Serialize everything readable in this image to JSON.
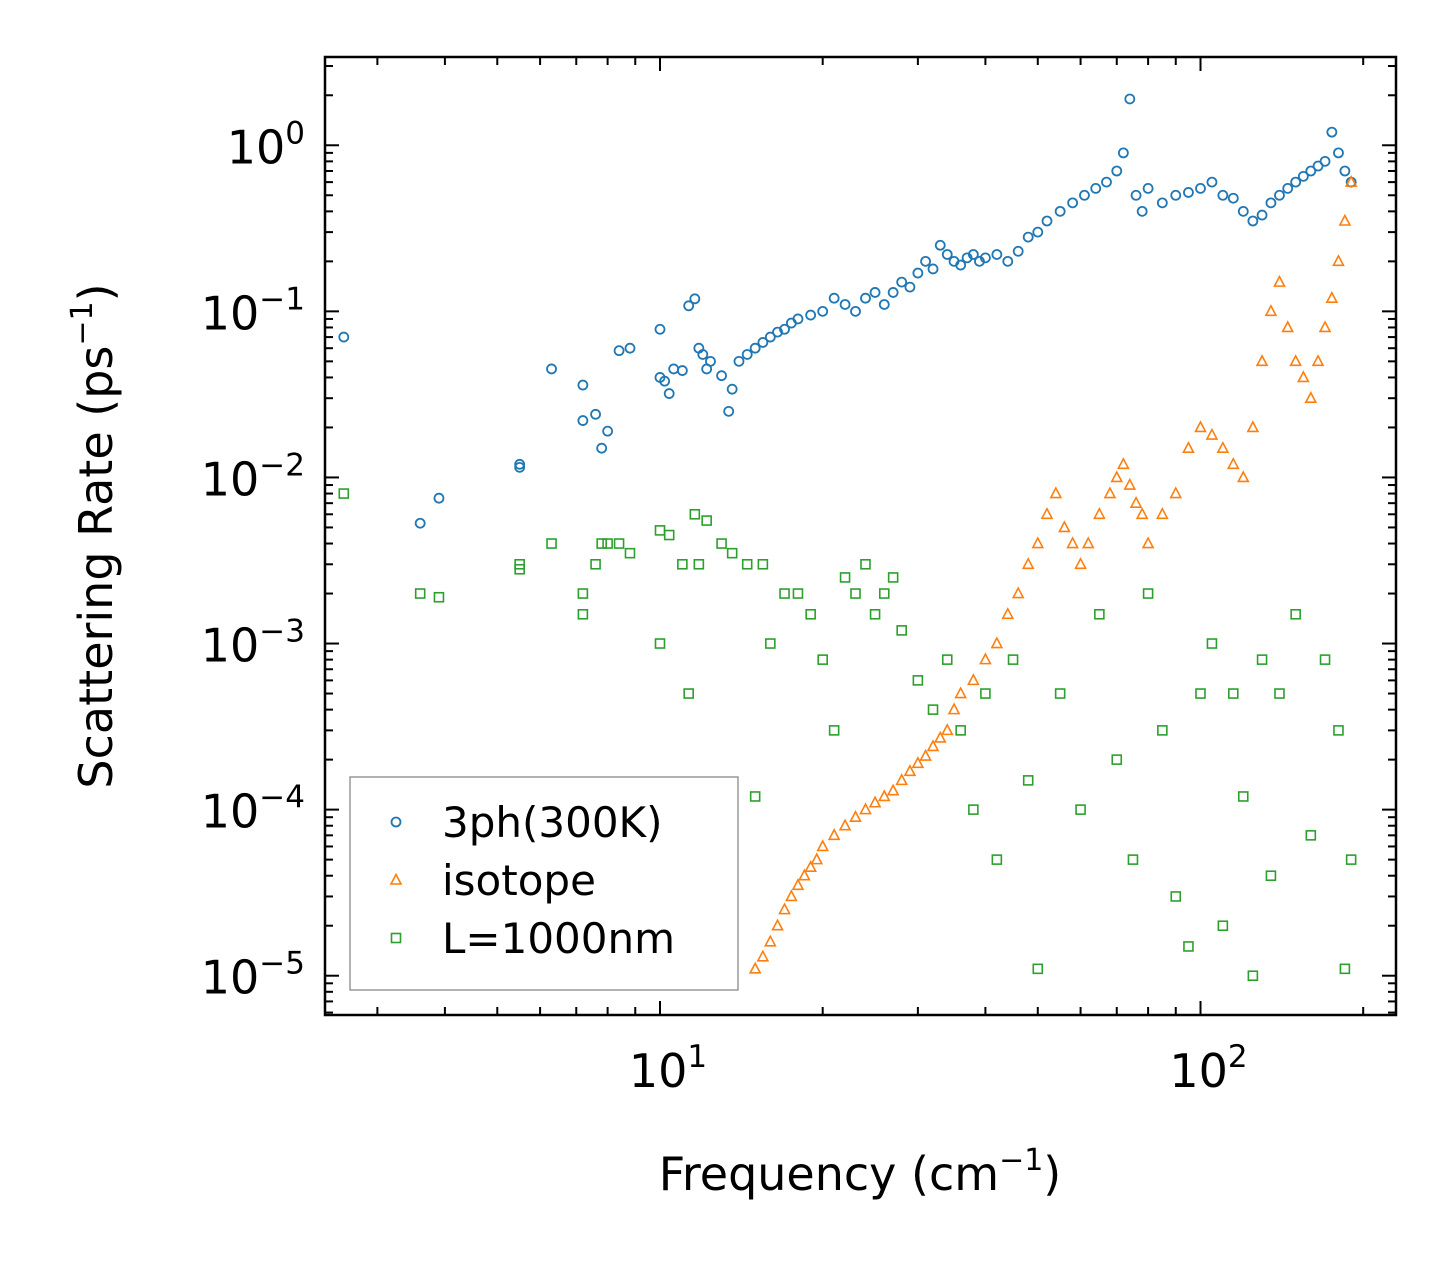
{
  "chart_data": {
    "type": "scatter",
    "xscale": "log",
    "yscale": "log",
    "xlabel_main": "Frequency (cm",
    "xlabel_sup": "−1",
    "xlabel_end": ")",
    "ylabel_main": "Scattering Rate (ps",
    "ylabel_sup": "−1",
    "ylabel_end": ")",
    "xlim": [
      2.4,
      230
    ],
    "ylim": [
      5.8e-06,
      3.4
    ],
    "x_ticks": [
      {
        "value": 10,
        "base": "10",
        "exp": "1"
      },
      {
        "value": 100,
        "base": "10",
        "exp": "2"
      }
    ],
    "y_ticks": [
      {
        "value": 1,
        "base": "10",
        "exp": "0"
      },
      {
        "value": 0.1,
        "base": "10",
        "exp": "−1"
      },
      {
        "value": 0.01,
        "base": "10",
        "exp": "−2"
      },
      {
        "value": 0.001,
        "base": "10",
        "exp": "−3"
      },
      {
        "value": 0.0001,
        "base": "10",
        "exp": "−4"
      },
      {
        "value": 1e-05,
        "base": "10",
        "exp": "−5"
      }
    ],
    "legend_position": "bottom-left",
    "series": [
      {
        "name": "3ph(300K)",
        "marker": "circle",
        "color": "#1f77b4",
        "x": [
          2.6,
          3.6,
          3.9,
          5.5,
          5.5,
          6.3,
          7.2,
          7.2,
          7.6,
          7.8,
          8.0,
          8.4,
          8.8,
          10.0,
          10.0,
          10.2,
          10.4,
          10.6,
          11.0,
          11.3,
          11.6,
          11.8,
          12.0,
          12.2,
          12.4,
          13.0,
          13.4,
          13.6,
          14.0,
          14.5,
          15.0,
          15.5,
          16.0,
          16.5,
          17.0,
          17.5,
          18.0,
          19.0,
          20.0,
          21.0,
          22.0,
          23.0,
          24.0,
          25.0,
          26.0,
          27.0,
          28.0,
          29.0,
          30.0,
          31.0,
          32.0,
          33.0,
          34.0,
          35.0,
          36.0,
          37.0,
          38.0,
          39.0,
          40.0,
          42.0,
          44.0,
          46.0,
          48.0,
          50.0,
          52.0,
          55.0,
          58.0,
          61.0,
          64.0,
          67.0,
          70.0,
          72.0,
          74.0,
          76.0,
          78.0,
          80.0,
          85.0,
          90.0,
          95.0,
          100.0,
          105.0,
          110.0,
          115.0,
          120.0,
          125.0,
          130.0,
          135.0,
          140.0,
          145.0,
          150.0,
          155.0,
          160.0,
          165.0,
          170.0,
          175.0,
          180.0,
          185.0,
          190.0
        ],
        "y": [
          0.07,
          0.0053,
          0.0075,
          0.0115,
          0.012,
          0.045,
          0.036,
          0.022,
          0.024,
          0.015,
          0.019,
          0.058,
          0.06,
          0.078,
          0.04,
          0.038,
          0.032,
          0.045,
          0.044,
          0.108,
          0.119,
          0.06,
          0.055,
          0.045,
          0.05,
          0.041,
          0.025,
          0.034,
          0.05,
          0.055,
          0.06,
          0.065,
          0.07,
          0.075,
          0.078,
          0.085,
          0.09,
          0.095,
          0.1,
          0.12,
          0.11,
          0.1,
          0.12,
          0.13,
          0.11,
          0.13,
          0.15,
          0.14,
          0.17,
          0.2,
          0.18,
          0.25,
          0.22,
          0.2,
          0.19,
          0.21,
          0.22,
          0.2,
          0.21,
          0.22,
          0.2,
          0.23,
          0.28,
          0.3,
          0.35,
          0.4,
          0.45,
          0.5,
          0.55,
          0.6,
          0.7,
          0.9,
          1.9,
          0.5,
          0.4,
          0.55,
          0.45,
          0.5,
          0.52,
          0.55,
          0.6,
          0.5,
          0.48,
          0.4,
          0.35,
          0.38,
          0.45,
          0.5,
          0.55,
          0.6,
          0.65,
          0.7,
          0.75,
          0.8,
          1.2,
          0.9,
          0.7,
          0.6
        ]
      },
      {
        "name": "isotope",
        "marker": "triangle",
        "color": "#ff7f0e",
        "x": [
          15.0,
          15.5,
          16.0,
          16.5,
          17.0,
          17.5,
          18.0,
          18.5,
          19.0,
          19.5,
          20.0,
          21.0,
          22.0,
          23.0,
          24.0,
          25.0,
          26.0,
          27.0,
          28.0,
          29.0,
          30.0,
          31.0,
          32.0,
          33.0,
          34.0,
          35.0,
          36.0,
          38.0,
          40.0,
          42.0,
          44.0,
          46.0,
          48.0,
          50.0,
          52.0,
          54.0,
          56.0,
          58.0,
          60.0,
          62.0,
          65.0,
          68.0,
          70.0,
          72.0,
          74.0,
          76.0,
          78.0,
          80.0,
          85.0,
          90.0,
          95.0,
          100.0,
          105.0,
          110.0,
          115.0,
          120.0,
          125.0,
          130.0,
          135.0,
          140.0,
          145.0,
          150.0,
          155.0,
          160.0,
          165.0,
          170.0,
          175.0,
          180.0,
          185.0,
          190.0
        ],
        "y": [
          1.1e-05,
          1.3e-05,
          1.6e-05,
          2e-05,
          2.5e-05,
          3e-05,
          3.5e-05,
          4e-05,
          4.5e-05,
          5e-05,
          6e-05,
          7e-05,
          8e-05,
          9e-05,
          0.0001,
          0.00011,
          0.00012,
          0.00013,
          0.00015,
          0.00017,
          0.00019,
          0.00021,
          0.00024,
          0.00027,
          0.0003,
          0.0004,
          0.0005,
          0.0006,
          0.0008,
          0.001,
          0.0015,
          0.002,
          0.003,
          0.004,
          0.006,
          0.008,
          0.005,
          0.004,
          0.003,
          0.004,
          0.006,
          0.008,
          0.01,
          0.012,
          0.009,
          0.007,
          0.006,
          0.004,
          0.006,
          0.008,
          0.015,
          0.02,
          0.018,
          0.015,
          0.012,
          0.01,
          0.02,
          0.05,
          0.1,
          0.15,
          0.08,
          0.05,
          0.04,
          0.03,
          0.05,
          0.08,
          0.12,
          0.2,
          0.35,
          0.6
        ]
      },
      {
        "name": "L=1000nm",
        "marker": "square",
        "color": "#2ca02c",
        "x": [
          2.6,
          3.6,
          3.9,
          5.5,
          5.5,
          6.3,
          7.2,
          7.2,
          7.6,
          7.8,
          8.0,
          8.4,
          8.8,
          10.0,
          10.0,
          10.4,
          11.0,
          11.3,
          11.6,
          11.8,
          12.2,
          13.0,
          13.6,
          14.5,
          15.0,
          15.5,
          16.0,
          17.0,
          18.0,
          19.0,
          20.0,
          21.0,
          22.0,
          23.0,
          24.0,
          25.0,
          26.0,
          27.0,
          28.0,
          30.0,
          32.0,
          34.0,
          36.0,
          38.0,
          40.0,
          42.0,
          45.0,
          48.0,
          50.0,
          55.0,
          60.0,
          65.0,
          70.0,
          75.0,
          80.0,
          85.0,
          90.0,
          95.0,
          100.0,
          105.0,
          110.0,
          115.0,
          120.0,
          125.0,
          130.0,
          135.0,
          140.0,
          150.0,
          160.0,
          170.0,
          180.0,
          185.0,
          190.0
        ],
        "y": [
          0.008,
          0.002,
          0.0019,
          0.0028,
          0.003,
          0.004,
          0.002,
          0.0015,
          0.003,
          0.004,
          0.004,
          0.004,
          0.0035,
          0.001,
          0.0048,
          0.0045,
          0.003,
          0.0005,
          0.006,
          0.003,
          0.0055,
          0.004,
          0.0035,
          0.003,
          0.00012,
          0.003,
          0.001,
          0.002,
          0.002,
          0.0015,
          0.0008,
          0.0003,
          0.0025,
          0.002,
          0.003,
          0.0015,
          0.002,
          0.0025,
          0.0012,
          0.0006,
          0.0004,
          0.0008,
          0.0003,
          0.0001,
          0.0005,
          5e-05,
          0.0008,
          0.00015,
          1.1e-05,
          0.0005,
          0.0001,
          0.0015,
          0.0002,
          5e-05,
          0.002,
          0.0003,
          3e-05,
          1.5e-05,
          0.0005,
          0.001,
          2e-05,
          0.0005,
          0.00012,
          1e-05,
          0.0008,
          4e-05,
          0.0005,
          0.0015,
          7e-05,
          0.0008,
          0.0003,
          1.1e-05,
          5e-05
        ]
      }
    ]
  }
}
